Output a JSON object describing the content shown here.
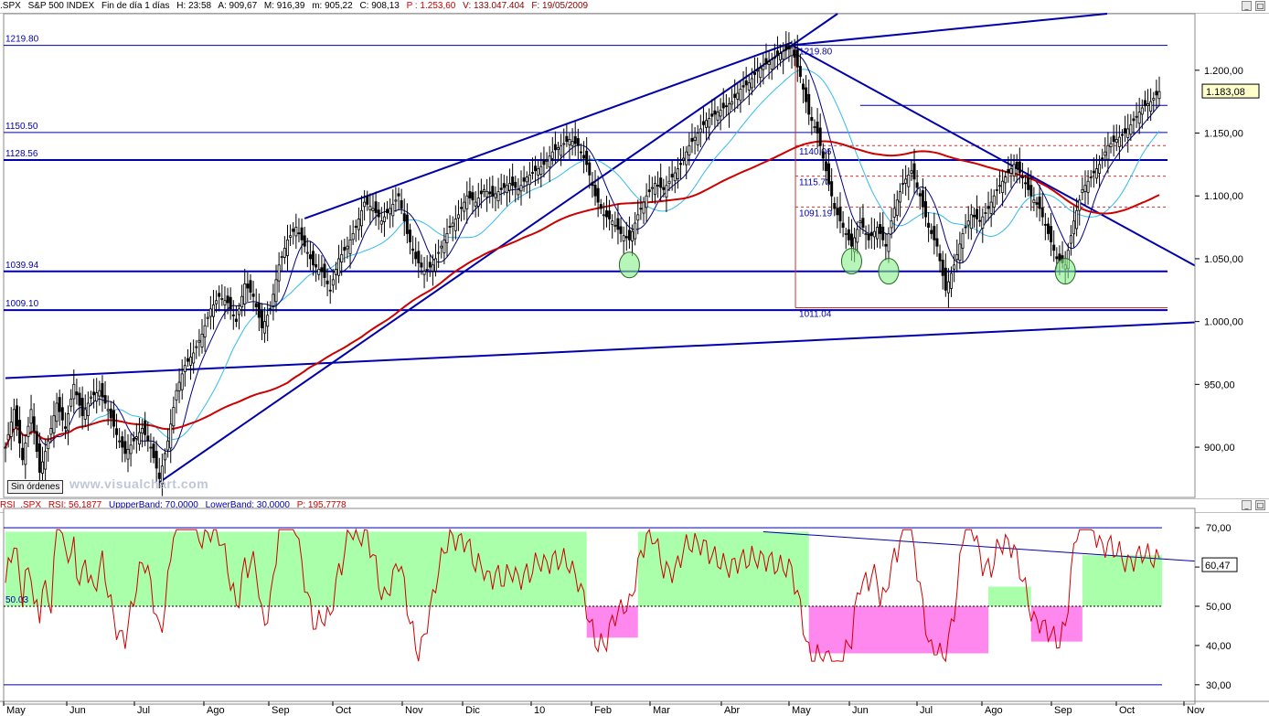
{
  "price_header": {
    "symbol": ".SPX",
    "name": "S&P 500 INDEX",
    "period": "Fin de día 1 días",
    "h": "H: 23:58",
    "a": "A: 909,67",
    "m": "M: 916,39",
    "mn": "m: 905,22",
    "c": "C: 908,13",
    "p": "P : 1.253,60",
    "v": "V: 133.047.404",
    "f": "F: 19/05/2009"
  },
  "rsi_header": {
    "name": "RSI_.SPX",
    "rsi": "RSI: 56,1877",
    "upper": "UppperBand: 70,0000",
    "lower": "LowerBand: 30,0000",
    "p": "P: 195,7778"
  },
  "watermark": "www.visualchart.com",
  "orders_button": "Sin órdenes",
  "window_buttons": [
    "_",
    "□"
  ],
  "chart_data": [
    {
      "type": "candlestick",
      "panel": "price",
      "x_tick_labels": [
        "May",
        "Jun",
        "Jul",
        "Ago",
        "Sep",
        "Oct",
        "Nov",
        "Dic",
        "10",
        "Feb",
        "Mar",
        "Abr",
        "May",
        "Jun",
        "Jul",
        "Ago",
        "Sep",
        "Oct",
        "Nov"
      ],
      "y_tick_labels": [
        "1.200,00",
        "1.150,00",
        "1.100,00",
        "1.050,00",
        "1.000,00",
        "950,00",
        "900,00"
      ],
      "ylim": [
        860,
        1245
      ],
      "current_price_label": "1.183,08",
      "horizontal_levels": [
        {
          "value": 1219.8,
          "label": "1219.80"
        },
        {
          "value": 1150.5,
          "label": "1150.50"
        },
        {
          "value": 1128.56,
          "label": "1128.56"
        },
        {
          "value": 1039.94,
          "label": "1039.94"
        },
        {
          "value": 1009.1,
          "label": "1009.10"
        }
      ],
      "fib_labels": [
        {
          "value": 1219.8,
          "label": "1219.80"
        },
        {
          "value": 1140.06,
          "label": "1140.06"
        },
        {
          "value": 1115.73,
          "label": "1115.73"
        },
        {
          "value": 1091.19,
          "label": "1091.19"
        },
        {
          "value": 1011.04,
          "label": "1011.04"
        }
      ],
      "close_path": [
        [
          0,
          900
        ],
        [
          6,
          930
        ],
        [
          12,
          890
        ],
        [
          18,
          930
        ],
        [
          24,
          880
        ],
        [
          30,
          905
        ],
        [
          36,
          935
        ],
        [
          42,
          915
        ],
        [
          48,
          950
        ],
        [
          54,
          925
        ],
        [
          60,
          940
        ],
        [
          66,
          945
        ],
        [
          72,
          930
        ],
        [
          78,
          910
        ],
        [
          84,
          895
        ],
        [
          90,
          905
        ],
        [
          96,
          915
        ],
        [
          102,
          900
        ],
        [
          108,
          875
        ],
        [
          114,
          905
        ],
        [
          120,
          945
        ],
        [
          126,
          965
        ],
        [
          132,
          975
        ],
        [
          138,
          990
        ],
        [
          144,
          1010
        ],
        [
          150,
          1020
        ],
        [
          156,
          1015
        ],
        [
          162,
          1000
        ],
        [
          168,
          1030
        ],
        [
          174,
          1020
        ],
        [
          180,
          995
        ],
        [
          186,
          1010
        ],
        [
          192,
          1045
        ],
        [
          198,
          1065
        ],
        [
          204,
          1075
        ],
        [
          210,
          1060
        ],
        [
          216,
          1045
        ],
        [
          222,
          1040
        ],
        [
          228,
          1025
        ],
        [
          234,
          1050
        ],
        [
          240,
          1060
        ],
        [
          246,
          1075
        ],
        [
          252,
          1095
        ],
        [
          258,
          1090
        ],
        [
          264,
          1080
        ],
        [
          270,
          1090
        ],
        [
          276,
          1100
        ],
        [
          282,
          1070
        ],
        [
          288,
          1050
        ],
        [
          294,
          1040
        ],
        [
          300,
          1045
        ],
        [
          306,
          1060
        ],
        [
          312,
          1075
        ],
        [
          318,
          1085
        ],
        [
          324,
          1100
        ],
        [
          330,
          1095
        ],
        [
          336,
          1105
        ],
        [
          342,
          1100
        ],
        [
          348,
          1105
        ],
        [
          354,
          1110
        ],
        [
          360,
          1105
        ],
        [
          366,
          1115
        ],
        [
          372,
          1120
        ],
        [
          378,
          1125
        ],
        [
          384,
          1135
        ],
        [
          390,
          1140
        ],
        [
          396,
          1145
        ],
        [
          402,
          1140
        ],
        [
          408,
          1125
        ],
        [
          414,
          1100
        ],
        [
          420,
          1085
        ],
        [
          426,
          1080
        ],
        [
          432,
          1070
        ],
        [
          438,
          1065
        ],
        [
          444,
          1085
        ],
        [
          450,
          1100
        ],
        [
          456,
          1110
        ],
        [
          462,
          1105
        ],
        [
          468,
          1115
        ],
        [
          474,
          1125
        ],
        [
          480,
          1140
        ],
        [
          486,
          1150
        ],
        [
          492,
          1160
        ],
        [
          498,
          1165
        ],
        [
          504,
          1170
        ],
        [
          510,
          1175
        ],
        [
          516,
          1185
        ],
        [
          522,
          1190
        ],
        [
          528,
          1200
        ],
        [
          534,
          1205
        ],
        [
          540,
          1210
        ],
        [
          546,
          1215
        ],
        [
          552,
          1218
        ],
        [
          558,
          1195
        ],
        [
          564,
          1165
        ],
        [
          570,
          1150
        ],
        [
          576,
          1120
        ],
        [
          582,
          1090
        ],
        [
          588,
          1075
        ],
        [
          594,
          1060
        ],
        [
          600,
          1080
        ],
        [
          606,
          1065
        ],
        [
          612,
          1075
        ],
        [
          618,
          1060
        ],
        [
          624,
          1090
        ],
        [
          630,
          1110
        ],
        [
          636,
          1120
        ],
        [
          642,
          1100
        ],
        [
          648,
          1075
        ],
        [
          654,
          1060
        ],
        [
          660,
          1025
        ],
        [
          666,
          1045
        ],
        [
          672,
          1070
        ],
        [
          678,
          1085
        ],
        [
          684,
          1080
        ],
        [
          690,
          1090
        ],
        [
          696,
          1105
        ],
        [
          702,
          1115
        ],
        [
          708,
          1125
        ],
        [
          714,
          1115
        ],
        [
          720,
          1100
        ],
        [
          726,
          1090
        ],
        [
          732,
          1070
        ],
        [
          738,
          1050
        ],
        [
          744,
          1045
        ],
        [
          750,
          1080
        ],
        [
          756,
          1105
        ],
        [
          762,
          1115
        ],
        [
          768,
          1125
        ],
        [
          774,
          1140
        ],
        [
          780,
          1145
        ],
        [
          786,
          1150
        ],
        [
          792,
          1160
        ],
        [
          798,
          1170
        ],
        [
          804,
          1175
        ],
        [
          810,
          1183
        ]
      ],
      "close_path_x_unit": "trading-day index",
      "series": [
        {
          "name": "SMA short",
          "color": "#000080"
        },
        {
          "name": "SMA medium",
          "color": "#33bbee"
        },
        {
          "name": "SMA long",
          "color": "#cc0000"
        }
      ]
    },
    {
      "type": "line",
      "panel": "rsi",
      "series": [
        {
          "name": "RSI",
          "color": "#cc0000"
        }
      ],
      "y_tick_labels": [
        "70,00",
        "60,00",
        "50,00",
        "40,00",
        "30,00"
      ],
      "ylim": [
        26,
        74
      ],
      "upper_band": 70,
      "lower_band": 30,
      "mid_line": 50,
      "current_value_label": "60,47",
      "mid_label": "50.03"
    }
  ],
  "colors": {
    "trend_line": "#0000aa",
    "sma_long": "#cc0000",
    "sma_mid": "#33bbee",
    "sma_short": "#000080",
    "bull_zone": "#aaffaa",
    "bear_zone": "#ff88ee",
    "candle": "#000000",
    "rsi_line": "#cc0000"
  }
}
